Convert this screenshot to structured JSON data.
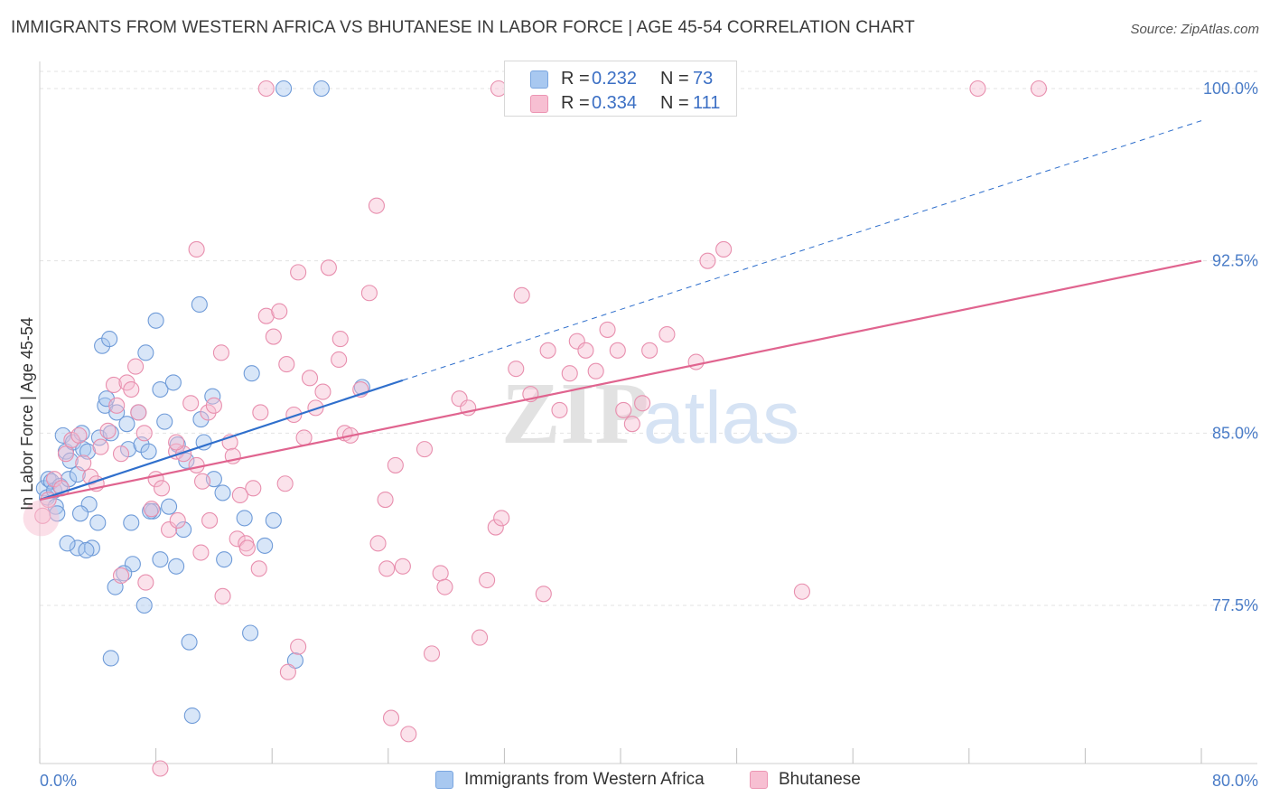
{
  "title": "IMMIGRANTS FROM WESTERN AFRICA VS BHUTANESE IN LABOR FORCE | AGE 45-54 CORRELATION CHART",
  "source": "Source: ZipAtlas.com",
  "legend_top": [
    {
      "r_label": "R =",
      "r_value": "0.232",
      "n_label": "N =",
      "n_value": "73",
      "color": "#a8c8f0",
      "border": "#7aa6e0"
    },
    {
      "r_label": "R =",
      "r_value": "0.334",
      "n_label": "N =",
      "n_value": "111",
      "color": "#f7bfd2",
      "border": "#ec95b3"
    }
  ],
  "watermark": {
    "zip": "ZIP",
    "atlas": "atlas"
  },
  "chart_data": {
    "type": "scatter",
    "title": "IMMIGRANTS FROM WESTERN AFRICA VS BHUTANESE IN LABOR FORCE | AGE 45-54 CORRELATION CHART",
    "xlabel": "",
    "ylabel": "In Labor Force | Age 45-54",
    "xlim": [
      0,
      80
    ],
    "ylim": [
      70,
      100
    ],
    "x_tick_labels": [
      "0.0%",
      "80.0%"
    ],
    "y_ticks": [
      77.5,
      85.0,
      92.5,
      100.0
    ],
    "y_tick_labels": [
      "77.5%",
      "85.0%",
      "92.5%",
      "100.0%"
    ],
    "grid": true,
    "legend_position": "bottom",
    "series": [
      {
        "name": "Immigrants from Western Africa",
        "color": "#a8c8f0",
        "edge": "#6f9bd8",
        "trend": {
          "x0": 0,
          "y0": 82.1,
          "x1": 25,
          "y1": 87.3,
          "dash_to_x": 80,
          "dash_to_y": 98.6,
          "color": "#2f6fcc"
        },
        "points": [
          [
            0.3,
            82.6
          ],
          [
            0.5,
            82.2
          ],
          [
            0.6,
            83.0
          ],
          [
            0.8,
            82.9
          ],
          [
            1.0,
            82.5
          ],
          [
            1.1,
            81.8
          ],
          [
            1.2,
            81.5
          ],
          [
            1.4,
            82.7
          ],
          [
            1.6,
            84.9
          ],
          [
            1.8,
            84.2
          ],
          [
            2.0,
            83.0
          ],
          [
            2.1,
            83.8
          ],
          [
            2.3,
            84.6
          ],
          [
            2.6,
            83.2
          ],
          [
            2.9,
            85.0
          ],
          [
            3.0,
            84.3
          ],
          [
            3.3,
            84.2
          ],
          [
            3.4,
            81.9
          ],
          [
            2.8,
            81.5
          ],
          [
            2.6,
            80.0
          ],
          [
            3.6,
            80.0
          ],
          [
            4.0,
            81.1
          ],
          [
            4.1,
            84.8
          ],
          [
            4.3,
            88.8
          ],
          [
            4.5,
            86.2
          ],
          [
            4.9,
            85.0
          ],
          [
            5.3,
            85.9
          ],
          [
            4.6,
            86.5
          ],
          [
            4.8,
            89.1
          ],
          [
            6.0,
            85.4
          ],
          [
            6.1,
            84.3
          ],
          [
            6.3,
            81.1
          ],
          [
            6.8,
            85.9
          ],
          [
            7.0,
            84.5
          ],
          [
            7.3,
            88.5
          ],
          [
            7.5,
            84.2
          ],
          [
            7.8,
            81.6
          ],
          [
            8.0,
            89.9
          ],
          [
            8.3,
            86.9
          ],
          [
            8.6,
            85.5
          ],
          [
            8.9,
            81.8
          ],
          [
            9.2,
            87.2
          ],
          [
            9.5,
            84.5
          ],
          [
            9.9,
            80.8
          ],
          [
            10.1,
            83.8
          ],
          [
            11.3,
            84.6
          ],
          [
            11.1,
            85.6
          ],
          [
            11.9,
            86.6
          ],
          [
            11.0,
            90.6
          ],
          [
            12.6,
            82.4
          ],
          [
            14.1,
            81.3
          ],
          [
            14.6,
            87.6
          ],
          [
            15.5,
            80.1
          ],
          [
            16.1,
            81.2
          ],
          [
            17.6,
            75.1
          ],
          [
            12.7,
            79.5
          ],
          [
            10.3,
            75.9
          ],
          [
            10.5,
            72.7
          ],
          [
            14.5,
            76.3
          ],
          [
            6.4,
            79.3
          ],
          [
            7.2,
            77.5
          ],
          [
            8.3,
            79.5
          ],
          [
            9.4,
            79.2
          ],
          [
            5.2,
            78.3
          ],
          [
            4.9,
            75.2
          ],
          [
            3.2,
            79.9
          ],
          [
            1.9,
            80.2
          ],
          [
            16.8,
            100.0
          ],
          [
            19.4,
            100.0
          ],
          [
            12.0,
            83.0
          ],
          [
            22.2,
            87.0
          ],
          [
            5.8,
            78.9
          ],
          [
            7.6,
            81.6
          ]
        ]
      },
      {
        "name": "Bhutanese",
        "color": "#f7bfd2",
        "edge": "#e88fae",
        "trend": {
          "x0": 0,
          "y0": 82.1,
          "x1": 80,
          "y1": 92.5,
          "color": "#e0648f"
        },
        "points": [
          [
            0.2,
            81.4
          ],
          [
            0.6,
            82.1
          ],
          [
            1.0,
            83.0
          ],
          [
            1.5,
            82.6
          ],
          [
            1.8,
            84.1
          ],
          [
            2.2,
            84.7
          ],
          [
            2.7,
            84.9
          ],
          [
            3.0,
            83.7
          ],
          [
            3.5,
            83.1
          ],
          [
            3.9,
            82.8
          ],
          [
            4.2,
            84.4
          ],
          [
            4.7,
            85.1
          ],
          [
            5.1,
            87.1
          ],
          [
            5.3,
            86.2
          ],
          [
            5.6,
            84.1
          ],
          [
            6.0,
            87.2
          ],
          [
            6.3,
            86.9
          ],
          [
            6.6,
            87.9
          ],
          [
            6.8,
            85.9
          ],
          [
            7.2,
            85.0
          ],
          [
            7.7,
            81.7
          ],
          [
            8.0,
            83.0
          ],
          [
            8.4,
            82.6
          ],
          [
            8.9,
            80.8
          ],
          [
            9.4,
            84.2
          ],
          [
            9.9,
            84.1
          ],
          [
            10.4,
            86.3
          ],
          [
            10.8,
            83.6
          ],
          [
            11.2,
            82.9
          ],
          [
            11.6,
            85.9
          ],
          [
            12.0,
            86.2
          ],
          [
            12.5,
            88.5
          ],
          [
            13.1,
            84.6
          ],
          [
            13.6,
            80.4
          ],
          [
            14.2,
            80.2
          ],
          [
            14.7,
            82.6
          ],
          [
            15.1,
            79.1
          ],
          [
            15.6,
            90.1
          ],
          [
            16.1,
            89.2
          ],
          [
            16.5,
            90.3
          ],
          [
            17.0,
            88.0
          ],
          [
            17.5,
            85.8
          ],
          [
            17.8,
            92.0
          ],
          [
            18.2,
            84.8
          ],
          [
            18.6,
            87.4
          ],
          [
            19.0,
            86.1
          ],
          [
            19.5,
            86.8
          ],
          [
            19.9,
            92.2
          ],
          [
            20.6,
            88.2
          ],
          [
            21.0,
            85.0
          ],
          [
            21.4,
            84.9
          ],
          [
            22.1,
            86.9
          ],
          [
            22.7,
            91.1
          ],
          [
            23.2,
            94.9
          ],
          [
            23.8,
            82.1
          ],
          [
            24.5,
            83.6
          ],
          [
            25.0,
            79.2
          ],
          [
            26.5,
            84.3
          ],
          [
            27.6,
            78.9
          ],
          [
            28.9,
            86.5
          ],
          [
            29.5,
            86.1
          ],
          [
            30.3,
            76.1
          ],
          [
            30.8,
            78.6
          ],
          [
            31.4,
            80.9
          ],
          [
            31.8,
            81.3
          ],
          [
            32.8,
            87.8
          ],
          [
            33.2,
            91.0
          ],
          [
            33.8,
            86.7
          ],
          [
            34.7,
            78.0
          ],
          [
            35.0,
            88.6
          ],
          [
            35.8,
            86.0
          ],
          [
            36.5,
            87.6
          ],
          [
            37.0,
            89.0
          ],
          [
            37.6,
            88.6
          ],
          [
            38.3,
            87.7
          ],
          [
            39.1,
            89.5
          ],
          [
            39.8,
            88.6
          ],
          [
            40.2,
            86.0
          ],
          [
            40.8,
            85.4
          ],
          [
            41.5,
            86.3
          ],
          [
            42.0,
            88.6
          ],
          [
            43.2,
            89.3
          ],
          [
            45.2,
            88.1
          ],
          [
            46.0,
            92.5
          ],
          [
            47.1,
            93.0
          ],
          [
            52.5,
            78.1
          ],
          [
            16.9,
            82.8
          ],
          [
            10.8,
            93.0
          ],
          [
            23.3,
            80.2
          ],
          [
            23.9,
            79.1
          ],
          [
            24.2,
            72.6
          ],
          [
            25.4,
            71.9
          ],
          [
            27.0,
            75.4
          ],
          [
            12.6,
            77.9
          ],
          [
            17.8,
            75.7
          ],
          [
            17.1,
            74.6
          ],
          [
            14.3,
            80.0
          ],
          [
            8.3,
            70.4
          ],
          [
            7.3,
            78.5
          ],
          [
            5.6,
            78.8
          ],
          [
            11.7,
            81.2
          ],
          [
            9.5,
            81.2
          ],
          [
            15.2,
            85.9
          ],
          [
            20.7,
            89.1
          ],
          [
            15.6,
            100.0
          ],
          [
            31.6,
            100.0
          ],
          [
            64.6,
            100.0
          ],
          [
            68.8,
            100.0
          ],
          [
            9.4,
            84.6
          ],
          [
            13.3,
            84.0
          ],
          [
            27.9,
            78.3
          ],
          [
            11.1,
            79.8
          ],
          [
            13.8,
            82.3
          ]
        ]
      }
    ]
  }
}
